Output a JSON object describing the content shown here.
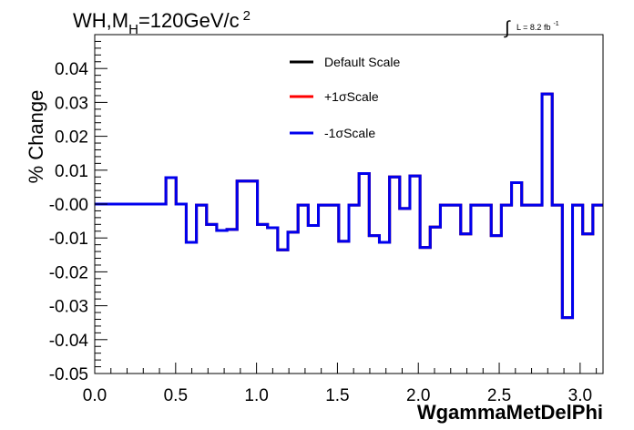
{
  "chart_data": {
    "type": "line",
    "plot_title_main": "WH,M",
    "plot_title_sub": "H",
    "plot_title_value": "=120GeV/c",
    "plot_title_sup": "2",
    "lumi_integral": "∫",
    "lumi_text": "L = 8.2 fb",
    "lumi_sup": "-1",
    "xlabel": "WgammaMetDelPhi",
    "ylabel": "% Change",
    "xlim": [
      0,
      3.1416
    ],
    "ylim": [
      -0.05,
      0.05
    ],
    "x_ticks": [
      "0.0",
      "0.5",
      "1.0",
      "1.5",
      "2.0",
      "2.5",
      "3.0"
    ],
    "y_ticks": [
      "-0.05",
      "-0.04",
      "-0.03",
      "-0.02",
      "-0.01",
      "-0.00",
      "0.01",
      "0.02",
      "0.03",
      "0.04"
    ],
    "legend_placement": "top-center",
    "bin_edges": [
      0.0,
      0.0628,
      0.1257,
      0.1885,
      0.2513,
      0.3142,
      0.377,
      0.4398,
      0.5027,
      0.5655,
      0.6283,
      0.6912,
      0.754,
      0.8168,
      0.8796,
      0.9425,
      1.0053,
      1.0681,
      1.131,
      1.1938,
      1.2566,
      1.3195,
      1.3823,
      1.4451,
      1.508,
      1.5708,
      1.6336,
      1.6965,
      1.7593,
      1.8221,
      1.885,
      1.9478,
      2.0106,
      2.0735,
      2.1363,
      2.1991,
      2.262,
      2.3248,
      2.3876,
      2.4504,
      2.5133,
      2.5761,
      2.6389,
      2.7018,
      2.7646,
      2.8274,
      2.8903,
      2.9531,
      3.0159,
      3.0788,
      3.1416
    ],
    "series": [
      {
        "name": "Default Scale",
        "color": "#000000",
        "values": [
          0,
          0,
          0,
          0,
          0,
          0,
          0,
          0.0078,
          0,
          -0.0113,
          -0.0003,
          -0.006,
          -0.0078,
          -0.0075,
          0.0068,
          0.0068,
          -0.006,
          -0.007,
          -0.0135,
          -0.0083,
          -0.0003,
          -0.0063,
          -0.0003,
          -0.0003,
          -0.011,
          -0.0003,
          0.009,
          -0.0093,
          -0.0113,
          0.008,
          -0.0013,
          0.0083,
          -0.0128,
          -0.0068,
          -0.0003,
          -0.0003,
          -0.0088,
          -0.0003,
          -0.0003,
          -0.0093,
          -0.0003,
          0.0063,
          -0.0003,
          -0.0003,
          0.0325,
          -0.0003,
          -0.0335,
          -0.0003,
          -0.0088,
          -0.0003
        ]
      },
      {
        "name": "+1σScale",
        "color": "#ff0000",
        "values": [
          0,
          0,
          0,
          0,
          0,
          0,
          0,
          0.0078,
          0,
          -0.0113,
          -0.0003,
          -0.006,
          -0.0078,
          -0.0075,
          0.0068,
          0.0068,
          -0.006,
          -0.007,
          -0.0135,
          -0.0083,
          -0.0003,
          -0.0063,
          -0.0003,
          -0.0003,
          -0.011,
          -0.0003,
          0.009,
          -0.0093,
          -0.0113,
          0.008,
          -0.0013,
          0.0083,
          -0.0128,
          -0.0068,
          -0.0003,
          -0.0003,
          -0.0088,
          -0.0003,
          -0.0003,
          -0.0093,
          -0.0003,
          0.0063,
          -0.0003,
          -0.0003,
          0.0325,
          -0.0003,
          -0.0335,
          -0.0003,
          -0.0088,
          -0.0003
        ]
      },
      {
        "name": "-1σScale",
        "color": "#0000ee",
        "values": [
          0,
          0,
          0,
          0,
          0,
          0,
          0,
          0.0078,
          0,
          -0.0113,
          -0.0003,
          -0.006,
          -0.0078,
          -0.0075,
          0.0068,
          0.0068,
          -0.006,
          -0.007,
          -0.0135,
          -0.0083,
          -0.0003,
          -0.0063,
          -0.0003,
          -0.0003,
          -0.011,
          -0.0003,
          0.009,
          -0.0093,
          -0.0113,
          0.008,
          -0.0013,
          0.0083,
          -0.0128,
          -0.0068,
          -0.0003,
          -0.0003,
          -0.0088,
          -0.0003,
          -0.0003,
          -0.0093,
          -0.0003,
          0.0063,
          -0.0003,
          -0.0003,
          0.0325,
          -0.0003,
          -0.0335,
          -0.0003,
          -0.0088,
          -0.0003
        ]
      }
    ]
  }
}
